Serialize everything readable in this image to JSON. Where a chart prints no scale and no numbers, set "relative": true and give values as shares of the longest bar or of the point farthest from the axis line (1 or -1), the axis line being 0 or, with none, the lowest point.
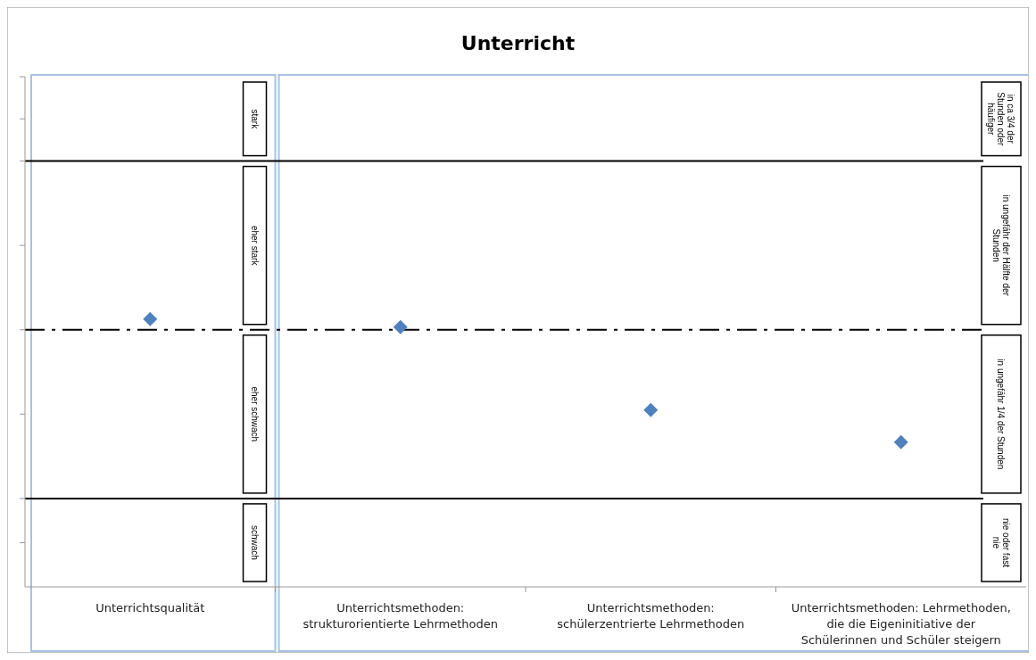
{
  "chart_data": {
    "type": "scatter",
    "title": "Unterricht",
    "relative": true,
    "marker": "diamond",
    "categories": [
      "Unterrichtsqualität",
      "Unterrichtsmethoden: strukturorientierte Lehrmethoden",
      "Unterrichtsmethoden: schülerzentrierte Lehrmethoden",
      "Unterrichtsmethoden: Lehrmethoden, die die Eigeninitiative der Schülerinnen und Schüler steigern"
    ],
    "series": [
      {
        "color": "#4f81bd",
        "values": [
          1,
          0.97,
          0.66,
          0.54
        ]
      }
    ],
    "ref_lines": [
      {
        "axis": "y",
        "value": 1.59,
        "line_style": "solid",
        "color": "#000000"
      },
      {
        "axis": "y",
        "value": 0.96,
        "line_style": "dashed",
        "color": "#000000"
      },
      {
        "axis": "y",
        "value": 0.33,
        "line_style": "solid",
        "color": "#000000"
      }
    ],
    "annotations": [
      "stark",
      "eher  stark",
      "eher schwach",
      "schwach",
      "in ca 3/4 der Stunden oder häufiger",
      "in ungefähr der Hälfte der Stunden",
      "in ungefähr 1/4 der Stunden",
      "nie oder fast nie"
    ]
  }
}
